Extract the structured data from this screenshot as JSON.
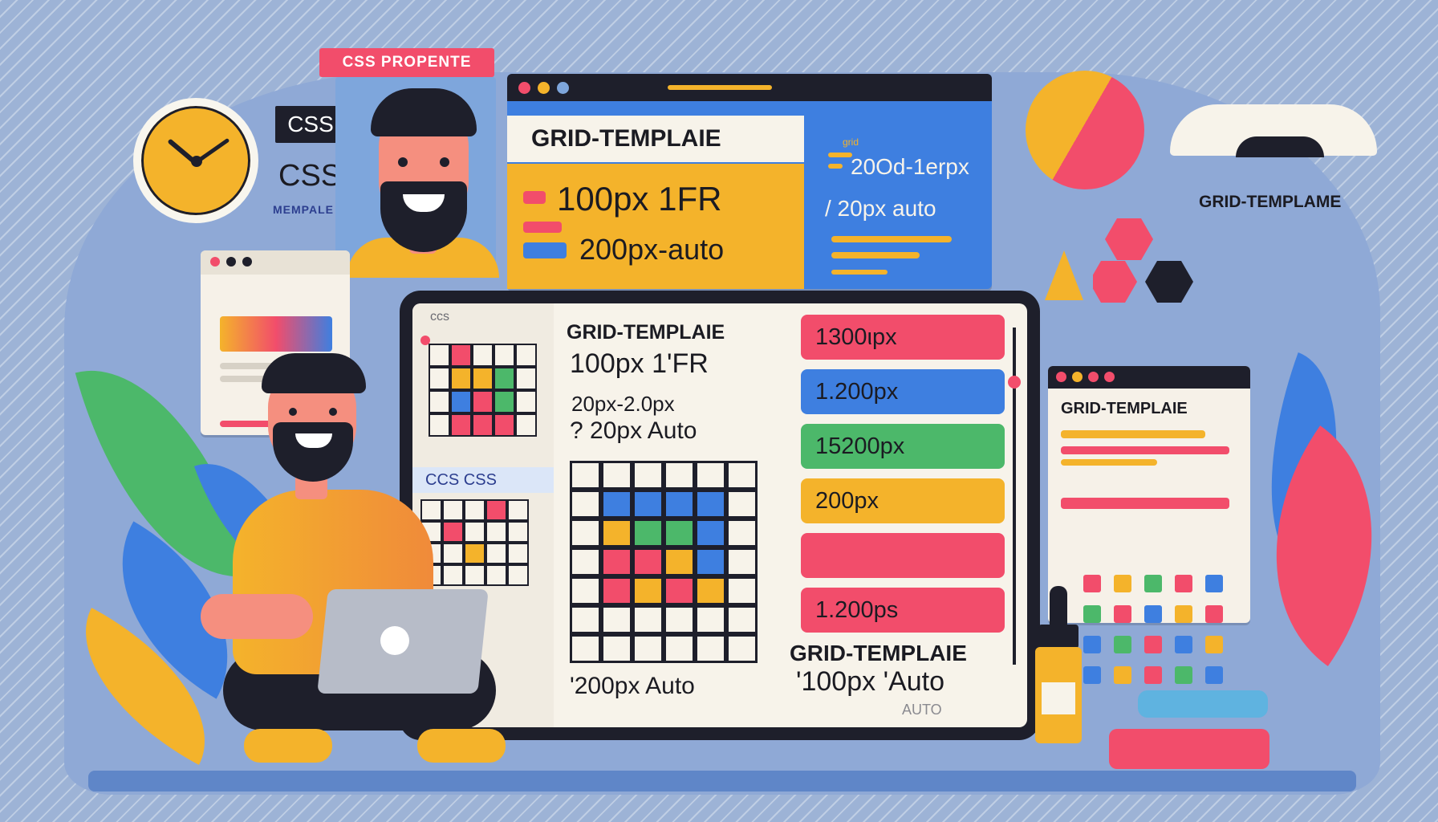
{
  "badge": {
    "label": "CSS PROPENTE"
  },
  "tags": {
    "css_small": "CSS",
    "css_large": "CSS",
    "template_word": "MEMPALE"
  },
  "top_window": {
    "heading": "GRID-TEMPLAIE",
    "line1": "100px 1FR",
    "line2": "200px-auto",
    "side_tiny": "grid",
    "side_line1": "20Od-1erpx",
    "side_line2": "/ 20px auto"
  },
  "corner_label": "GRID-TEMPLAME",
  "main_screen": {
    "tab_label": "ccs",
    "heading": "GRID-TEMPLAIE",
    "line1": "100px 1'FR",
    "line2": "20px-2.0px",
    "line3": "? 20px Auto",
    "css_tab": "CCS CSS",
    "bottom_left": "'200px Auto",
    "bottom_heading": "GRID-TEMPLAIE",
    "bottom_line": "'100px 'Auto",
    "bottom_faint": "AUTO",
    "pills": [
      {
        "label": "1300ιpx",
        "color": "#f24d6b"
      },
      {
        "label": "1.200px",
        "color": "#3e7fe0"
      },
      {
        "label": "15200px",
        "color": "#4cb86a"
      },
      {
        "label": "200px",
        "color": "#f4b32b"
      },
      {
        "label": "",
        "color": "#f24d6b"
      },
      {
        "label": "1.200ps",
        "color": "#f24d6b"
      }
    ]
  },
  "right_window": {
    "heading": "GRID-TEMPLAIE"
  },
  "colors": {
    "yellow": "#f4b32b",
    "red": "#f24d6b",
    "blue": "#3e7fe0",
    "green": "#4cb86a",
    "dark": "#1e1f2b"
  }
}
